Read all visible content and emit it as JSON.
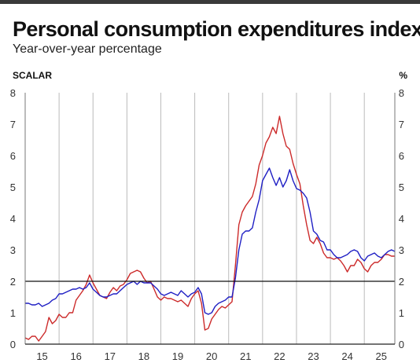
{
  "header": {
    "title": "Personal consumption expenditures index",
    "subtitle": "Year-over-year percentage"
  },
  "axis_units": {
    "left": "SCALAR",
    "right": "%"
  },
  "colors": {
    "red_series": "#cc2a2a",
    "blue_series": "#1f1fc4",
    "reference_line": "#111111",
    "grid": "#bbbbbb",
    "top_bar": "#3a3a3a"
  },
  "chart_data": {
    "type": "line",
    "title": "Personal consumption expenditures index",
    "subtitle": "Year-over-year percentage",
    "ylabel_left": "SCALAR",
    "ylabel_right": "%",
    "xlim": [
      2015.0,
      2025.9
    ],
    "ylim": [
      0,
      8
    ],
    "y_ticks": [
      0,
      1,
      2,
      3,
      4,
      5,
      6,
      7,
      8
    ],
    "x_ticks": [
      {
        "label": "15",
        "x": 2015.5
      },
      {
        "label": "16",
        "x": 2016.5
      },
      {
        "label": "17",
        "x": 2017.5
      },
      {
        "label": "18",
        "x": 2018.5
      },
      {
        "label": "19",
        "x": 2019.5
      },
      {
        "label": "20",
        "x": 2020.5
      },
      {
        "label": "21",
        "x": 2021.5
      },
      {
        "label": "22",
        "x": 2022.5
      },
      {
        "label": "23",
        "x": 2023.5
      },
      {
        "label": "24",
        "x": 2024.5
      },
      {
        "label": "25",
        "x": 2025.5
      }
    ],
    "year_gridlines": [
      2016,
      2017,
      2018,
      2019,
      2020,
      2021,
      2022,
      2023,
      2024,
      2025
    ],
    "grid": "vertical",
    "reference_line": 2,
    "series": [
      {
        "color": "#cc2a2a",
        "points": [
          [
            2015.0,
            0.2
          ],
          [
            2015.1,
            0.15
          ],
          [
            2015.2,
            0.25
          ],
          [
            2015.3,
            0.25
          ],
          [
            2015.4,
            0.1
          ],
          [
            2015.5,
            0.25
          ],
          [
            2015.6,
            0.4
          ],
          [
            2015.7,
            0.85
          ],
          [
            2015.8,
            0.65
          ],
          [
            2015.9,
            0.75
          ],
          [
            2016.0,
            0.95
          ],
          [
            2016.1,
            0.85
          ],
          [
            2016.2,
            0.85
          ],
          [
            2016.3,
            1.0
          ],
          [
            2016.4,
            1.0
          ],
          [
            2016.5,
            1.4
          ],
          [
            2016.6,
            1.55
          ],
          [
            2016.7,
            1.7
          ],
          [
            2016.8,
            1.9
          ],
          [
            2016.9,
            2.2
          ],
          [
            2017.0,
            1.95
          ],
          [
            2017.1,
            1.75
          ],
          [
            2017.2,
            1.55
          ],
          [
            2017.3,
            1.5
          ],
          [
            2017.4,
            1.45
          ],
          [
            2017.5,
            1.65
          ],
          [
            2017.6,
            1.8
          ],
          [
            2017.7,
            1.7
          ],
          [
            2017.8,
            1.85
          ],
          [
            2017.9,
            1.9
          ],
          [
            2018.0,
            2.05
          ],
          [
            2018.1,
            2.25
          ],
          [
            2018.2,
            2.3
          ],
          [
            2018.3,
            2.35
          ],
          [
            2018.4,
            2.3
          ],
          [
            2018.5,
            2.1
          ],
          [
            2018.6,
            1.95
          ],
          [
            2018.7,
            2.0
          ],
          [
            2018.8,
            1.75
          ],
          [
            2018.9,
            1.5
          ],
          [
            2019.0,
            1.4
          ],
          [
            2019.1,
            1.5
          ],
          [
            2019.2,
            1.45
          ],
          [
            2019.3,
            1.45
          ],
          [
            2019.4,
            1.4
          ],
          [
            2019.5,
            1.35
          ],
          [
            2019.6,
            1.4
          ],
          [
            2019.7,
            1.3
          ],
          [
            2019.8,
            1.2
          ],
          [
            2019.9,
            1.45
          ],
          [
            2020.0,
            1.6
          ],
          [
            2020.1,
            1.7
          ],
          [
            2020.2,
            1.3
          ],
          [
            2020.3,
            0.45
          ],
          [
            2020.4,
            0.5
          ],
          [
            2020.5,
            0.8
          ],
          [
            2020.6,
            0.95
          ],
          [
            2020.7,
            1.1
          ],
          [
            2020.8,
            1.2
          ],
          [
            2020.9,
            1.15
          ],
          [
            2021.0,
            1.25
          ],
          [
            2021.1,
            1.35
          ],
          [
            2021.2,
            2.5
          ],
          [
            2021.3,
            3.8
          ],
          [
            2021.4,
            4.2
          ],
          [
            2021.5,
            4.4
          ],
          [
            2021.6,
            4.55
          ],
          [
            2021.7,
            4.7
          ],
          [
            2021.8,
            5.1
          ],
          [
            2021.9,
            5.7
          ],
          [
            2022.0,
            6.0
          ],
          [
            2022.1,
            6.4
          ],
          [
            2022.2,
            6.6
          ],
          [
            2022.3,
            6.9
          ],
          [
            2022.4,
            6.7
          ],
          [
            2022.5,
            7.25
          ],
          [
            2022.6,
            6.7
          ],
          [
            2022.7,
            6.3
          ],
          [
            2022.8,
            6.2
          ],
          [
            2022.9,
            5.75
          ],
          [
            2023.0,
            5.4
          ],
          [
            2023.1,
            5.1
          ],
          [
            2023.2,
            4.4
          ],
          [
            2023.3,
            3.8
          ],
          [
            2023.4,
            3.3
          ],
          [
            2023.5,
            3.2
          ],
          [
            2023.6,
            3.4
          ],
          [
            2023.7,
            3.2
          ],
          [
            2023.8,
            2.9
          ],
          [
            2023.9,
            2.75
          ],
          [
            2024.0,
            2.75
          ],
          [
            2024.1,
            2.7
          ],
          [
            2024.2,
            2.75
          ],
          [
            2024.3,
            2.65
          ],
          [
            2024.4,
            2.5
          ],
          [
            2024.5,
            2.3
          ],
          [
            2024.6,
            2.5
          ],
          [
            2024.7,
            2.5
          ],
          [
            2024.8,
            2.7
          ],
          [
            2024.9,
            2.6
          ],
          [
            2025.0,
            2.4
          ],
          [
            2025.1,
            2.3
          ],
          [
            2025.2,
            2.5
          ],
          [
            2025.3,
            2.6
          ],
          [
            2025.4,
            2.6
          ],
          [
            2025.5,
            2.7
          ],
          [
            2025.6,
            2.85
          ],
          [
            2025.7,
            2.85
          ],
          [
            2025.8,
            2.8
          ],
          [
            2025.9,
            2.8
          ]
        ]
      },
      {
        "color": "#1f1fc4",
        "points": [
          [
            2015.0,
            1.3
          ],
          [
            2015.1,
            1.3
          ],
          [
            2015.2,
            1.25
          ],
          [
            2015.3,
            1.25
          ],
          [
            2015.4,
            1.3
          ],
          [
            2015.5,
            1.2
          ],
          [
            2015.6,
            1.25
          ],
          [
            2015.7,
            1.3
          ],
          [
            2015.8,
            1.4
          ],
          [
            2015.9,
            1.45
          ],
          [
            2016.0,
            1.6
          ],
          [
            2016.1,
            1.6
          ],
          [
            2016.2,
            1.65
          ],
          [
            2016.3,
            1.7
          ],
          [
            2016.4,
            1.75
          ],
          [
            2016.5,
            1.75
          ],
          [
            2016.6,
            1.8
          ],
          [
            2016.7,
            1.75
          ],
          [
            2016.8,
            1.8
          ],
          [
            2016.9,
            1.95
          ],
          [
            2017.0,
            1.75
          ],
          [
            2017.1,
            1.65
          ],
          [
            2017.2,
            1.55
          ],
          [
            2017.3,
            1.5
          ],
          [
            2017.4,
            1.5
          ],
          [
            2017.5,
            1.55
          ],
          [
            2017.6,
            1.6
          ],
          [
            2017.7,
            1.6
          ],
          [
            2017.8,
            1.7
          ],
          [
            2017.9,
            1.8
          ],
          [
            2018.0,
            1.9
          ],
          [
            2018.1,
            1.95
          ],
          [
            2018.2,
            2.0
          ],
          [
            2018.3,
            1.9
          ],
          [
            2018.4,
            2.0
          ],
          [
            2018.5,
            1.95
          ],
          [
            2018.6,
            1.95
          ],
          [
            2018.7,
            1.95
          ],
          [
            2018.8,
            1.85
          ],
          [
            2018.9,
            1.75
          ],
          [
            2019.0,
            1.6
          ],
          [
            2019.1,
            1.55
          ],
          [
            2019.2,
            1.6
          ],
          [
            2019.3,
            1.65
          ],
          [
            2019.4,
            1.6
          ],
          [
            2019.5,
            1.55
          ],
          [
            2019.6,
            1.7
          ],
          [
            2019.7,
            1.6
          ],
          [
            2019.8,
            1.5
          ],
          [
            2019.9,
            1.6
          ],
          [
            2020.0,
            1.65
          ],
          [
            2020.1,
            1.8
          ],
          [
            2020.2,
            1.6
          ],
          [
            2020.3,
            1.0
          ],
          [
            2020.4,
            0.95
          ],
          [
            2020.5,
            1.0
          ],
          [
            2020.6,
            1.2
          ],
          [
            2020.7,
            1.3
          ],
          [
            2020.8,
            1.35
          ],
          [
            2020.9,
            1.4
          ],
          [
            2021.0,
            1.5
          ],
          [
            2021.1,
            1.5
          ],
          [
            2021.2,
            2.1
          ],
          [
            2021.3,
            3.0
          ],
          [
            2021.4,
            3.5
          ],
          [
            2021.5,
            3.6
          ],
          [
            2021.6,
            3.6
          ],
          [
            2021.7,
            3.7
          ],
          [
            2021.8,
            4.2
          ],
          [
            2021.9,
            4.6
          ],
          [
            2022.0,
            5.2
          ],
          [
            2022.1,
            5.4
          ],
          [
            2022.2,
            5.6
          ],
          [
            2022.3,
            5.3
          ],
          [
            2022.4,
            5.05
          ],
          [
            2022.5,
            5.3
          ],
          [
            2022.6,
            5.0
          ],
          [
            2022.7,
            5.2
          ],
          [
            2022.8,
            5.55
          ],
          [
            2022.9,
            5.2
          ],
          [
            2023.0,
            4.95
          ],
          [
            2023.1,
            4.9
          ],
          [
            2023.2,
            4.8
          ],
          [
            2023.3,
            4.65
          ],
          [
            2023.4,
            4.2
          ],
          [
            2023.5,
            3.6
          ],
          [
            2023.6,
            3.5
          ],
          [
            2023.7,
            3.3
          ],
          [
            2023.8,
            3.25
          ],
          [
            2023.9,
            3.0
          ],
          [
            2024.0,
            3.0
          ],
          [
            2024.1,
            2.85
          ],
          [
            2024.2,
            2.75
          ],
          [
            2024.3,
            2.75
          ],
          [
            2024.4,
            2.8
          ],
          [
            2024.5,
            2.85
          ],
          [
            2024.6,
            2.95
          ],
          [
            2024.7,
            3.0
          ],
          [
            2024.8,
            2.95
          ],
          [
            2024.9,
            2.75
          ],
          [
            2025.0,
            2.65
          ],
          [
            2025.1,
            2.8
          ],
          [
            2025.2,
            2.85
          ],
          [
            2025.3,
            2.9
          ],
          [
            2025.4,
            2.8
          ],
          [
            2025.5,
            2.75
          ],
          [
            2025.6,
            2.85
          ],
          [
            2025.7,
            2.95
          ],
          [
            2025.8,
            3.0
          ],
          [
            2025.9,
            2.95
          ]
        ]
      }
    ]
  }
}
